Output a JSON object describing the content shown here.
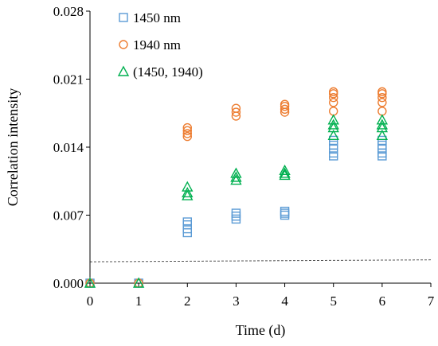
{
  "chart_data": {
    "type": "scatter",
    "title": "",
    "xlabel": "Time (d)",
    "ylabel": "Correlation intensity",
    "xlim": [
      0,
      7
    ],
    "ylim": [
      0,
      0.028
    ],
    "x_ticks": [
      0,
      1,
      2,
      3,
      4,
      5,
      6,
      7
    ],
    "x_tick_labels": [
      "0",
      "1",
      "2",
      "3",
      "4",
      "5",
      "6",
      "7"
    ],
    "y_ticks": [
      0,
      0.007,
      0.014,
      0.021,
      0.028
    ],
    "y_tick_labels": [
      "0.000",
      "0.007",
      "0.014",
      "0.021",
      "0.028"
    ],
    "grid": false,
    "legend_position": "top-left",
    "series": [
      {
        "name": "1450 nm",
        "marker": "square",
        "color": "#5b9bd5",
        "points": [
          [
            0,
            0
          ],
          [
            1,
            0
          ],
          [
            2,
            0.0052
          ],
          [
            2,
            0.0056
          ],
          [
            2,
            0.006
          ],
          [
            2,
            0.0063
          ],
          [
            3,
            0.0066
          ],
          [
            3,
            0.0069
          ],
          [
            3,
            0.0072
          ],
          [
            4,
            0.007
          ],
          [
            4,
            0.0072
          ],
          [
            4,
            0.0074
          ],
          [
            5,
            0.0131
          ],
          [
            5,
            0.0134
          ],
          [
            5,
            0.0138
          ],
          [
            5,
            0.0142
          ],
          [
            5,
            0.0147
          ],
          [
            6,
            0.0131
          ],
          [
            6,
            0.0134
          ],
          [
            6,
            0.0138
          ],
          [
            6,
            0.0142
          ],
          [
            6,
            0.0147
          ]
        ]
      },
      {
        "name": "1940 nm",
        "marker": "circle",
        "color": "#ed7d31",
        "points": [
          [
            0,
            0
          ],
          [
            1,
            0
          ],
          [
            2,
            0.0151
          ],
          [
            2,
            0.0154
          ],
          [
            2,
            0.0157
          ],
          [
            2,
            0.016
          ],
          [
            3,
            0.0172
          ],
          [
            3,
            0.0176
          ],
          [
            3,
            0.018
          ],
          [
            4,
            0.0176
          ],
          [
            4,
            0.0179
          ],
          [
            4,
            0.0182
          ],
          [
            4,
            0.0184
          ],
          [
            5,
            0.0177
          ],
          [
            5,
            0.0186
          ],
          [
            5,
            0.0191
          ],
          [
            5,
            0.0195
          ],
          [
            5,
            0.0197
          ],
          [
            6,
            0.0177
          ],
          [
            6,
            0.0186
          ],
          [
            6,
            0.0191
          ],
          [
            6,
            0.0195
          ],
          [
            6,
            0.0197
          ]
        ]
      },
      {
        "name": "(1450, 1940)",
        "marker": "triangle",
        "color": "#00b050",
        "points": [
          [
            0,
            0
          ],
          [
            1,
            0
          ],
          [
            2,
            0.009
          ],
          [
            2,
            0.0093
          ],
          [
            2,
            0.0099
          ],
          [
            3,
            0.0106
          ],
          [
            3,
            0.0109
          ],
          [
            3,
            0.0113
          ],
          [
            4,
            0.0111
          ],
          [
            4,
            0.0113
          ],
          [
            4,
            0.0116
          ],
          [
            5,
            0.0152
          ],
          [
            5,
            0.016
          ],
          [
            5,
            0.0163
          ],
          [
            5,
            0.0168
          ],
          [
            6,
            0.0152
          ],
          [
            6,
            0.016
          ],
          [
            6,
            0.0163
          ],
          [
            6,
            0.0168
          ]
        ]
      }
    ],
    "threshold_line": {
      "style": "dashed",
      "color": "#555555",
      "points": [
        [
          0,
          0.0022
        ],
        [
          7,
          0.0024
        ]
      ]
    }
  }
}
